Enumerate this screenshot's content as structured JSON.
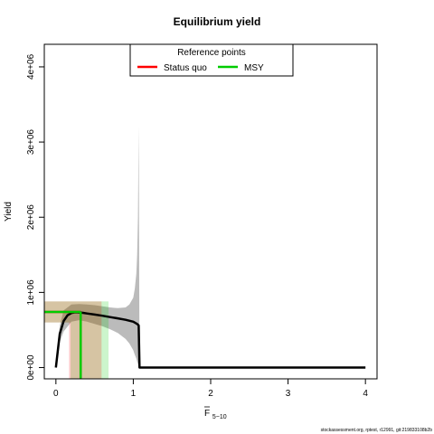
{
  "chart_data": {
    "type": "line",
    "title": "Equilibrium yield",
    "xlabel_main": "F",
    "xlabel_sub": "5−10",
    "ylabel": "Yield",
    "xlim": [
      -0.15,
      4.15
    ],
    "ylim": [
      -150000,
      4300000
    ],
    "x_ticks": [
      0,
      1,
      2,
      3,
      4
    ],
    "x_tick_labels": [
      "0",
      "1",
      "2",
      "3",
      "4"
    ],
    "y_ticks": [
      0,
      1000000,
      2000000,
      3000000,
      4000000
    ],
    "y_tick_labels": [
      "0e+00",
      "1e+06",
      "2e+06",
      "3e+06",
      "4e+06"
    ],
    "legend": {
      "title": "Reference points",
      "placement": "top-center",
      "entries": [
        {
          "label": "Status quo",
          "color": "#ff0000"
        },
        {
          "label": "MSY",
          "color": "#00cc00"
        }
      ]
    },
    "yield_curve": {
      "color": "#000000",
      "x": [
        0,
        0.05,
        0.1,
        0.15,
        0.2,
        0.25,
        0.3,
        0.35,
        0.4,
        0.5,
        0.6,
        0.7,
        0.8,
        0.9,
        1.0,
        1.05,
        1.07,
        1.08,
        1.1,
        1.5,
        2.0,
        3.0,
        4.0
      ],
      "y": [
        0,
        450000,
        620000,
        695000,
        725000,
        735000,
        733000,
        728000,
        720000,
        705000,
        690000,
        672000,
        655000,
        635000,
        610000,
        580000,
        560000,
        0,
        0,
        0,
        0,
        0,
        0
      ]
    },
    "uncertainty_band": {
      "color": "#bbbbbb",
      "x": [
        0,
        0.05,
        0.1,
        0.2,
        0.3,
        0.4,
        0.5,
        0.6,
        0.7,
        0.8,
        0.9,
        0.95,
        1.0,
        1.02,
        1.04,
        1.05,
        1.06,
        1.07,
        1.08
      ],
      "upper": [
        0,
        560000,
        760000,
        840000,
        845000,
        840000,
        830000,
        815000,
        800000,
        790000,
        800000,
        840000,
        930000,
        1050000,
        1250000,
        1500000,
        2000000,
        3220000,
        0
      ],
      "lower": [
        0,
        340000,
        480000,
        610000,
        630000,
        610000,
        580000,
        550000,
        510000,
        460000,
        380000,
        320000,
        230000,
        170000,
        120000,
        80000,
        50000,
        20000,
        0
      ]
    },
    "status_quo": {
      "color": "#ff0000",
      "f": 0.32,
      "yield": 740000,
      "f_range": [
        0.17,
        0.59
      ],
      "yield_range": [
        600000,
        880000
      ]
    },
    "msy": {
      "color": "#00cc00",
      "f": 0.32,
      "yield": 740000,
      "f_range": [
        0.19,
        0.68
      ],
      "yield_range": [
        600000,
        880000
      ]
    },
    "footer": "stockassessment.org, rptest, r12991, git:219833108b2b"
  }
}
